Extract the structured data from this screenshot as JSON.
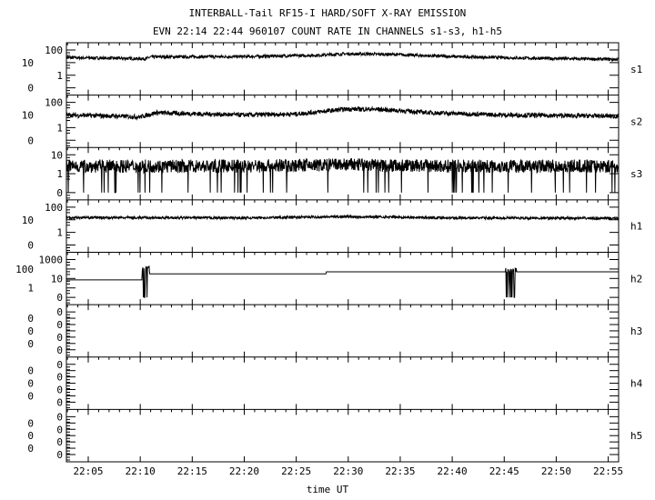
{
  "chart_data": {
    "type": "line",
    "title": "INTERBALL-Tail RF15-I HARD/SOFT X-RAY EMISSION",
    "subtitle": "EVN 22:14 22:44 960107  COUNT RATE IN CHANNELS s1-s3, h1-h5",
    "xlabel": "time UT",
    "xlim_minutes": [
      2.9,
      56.0
    ],
    "x_ticks": [
      {
        "label": "22:05",
        "min": 5
      },
      {
        "label": "22:10",
        "min": 10
      },
      {
        "label": "22:15",
        "min": 15
      },
      {
        "label": "22:20",
        "min": 20
      },
      {
        "label": "22:25",
        "min": 25
      },
      {
        "label": "22:30",
        "min": 30
      },
      {
        "label": "22:35",
        "min": 35
      },
      {
        "label": "22:40",
        "min": 40
      },
      {
        "label": "22:45",
        "min": 45
      },
      {
        "label": "22:50",
        "min": 50
      },
      {
        "label": "22:55",
        "min": 55
      }
    ],
    "yscale": "log",
    "panels": [
      {
        "name": "s1",
        "ylim": [
          0.1,
          100
        ],
        "yticks": [
          "100",
          "10",
          "1",
          "0"
        ],
        "points": [
          [
            2.9,
            25
          ],
          [
            8,
            22
          ],
          [
            10.5,
            20
          ],
          [
            11,
            28
          ],
          [
            20,
            30
          ],
          [
            27,
            38
          ],
          [
            30,
            50
          ],
          [
            34,
            45
          ],
          [
            40,
            30
          ],
          [
            48,
            22
          ],
          [
            56,
            18
          ]
        ],
        "noise": 0.12,
        "dropouts": 0
      },
      {
        "name": "s2",
        "ylim": [
          0.1,
          100
        ],
        "yticks": [
          "100",
          "10",
          "1",
          "0"
        ],
        "points": [
          [
            2.9,
            10
          ],
          [
            8,
            8
          ],
          [
            10,
            7
          ],
          [
            11.5,
            15
          ],
          [
            20,
            10
          ],
          [
            25,
            12
          ],
          [
            30,
            30
          ],
          [
            33,
            28
          ],
          [
            38,
            15
          ],
          [
            45,
            10
          ],
          [
            56,
            8
          ]
        ],
        "noise": 0.18,
        "dropouts": 0
      },
      {
        "name": "s3",
        "ylim": [
          0.1,
          10
        ],
        "yticks": [
          "10",
          "1",
          "0"
        ],
        "points": [
          [
            2.9,
            2.5
          ],
          [
            20,
            2.5
          ],
          [
            30,
            3
          ],
          [
            40,
            2.5
          ],
          [
            56,
            2.5
          ]
        ],
        "noise": 0.35,
        "dropouts": 0.03
      },
      {
        "name": "h1",
        "ylim": [
          0.1,
          100
        ],
        "yticks": [
          "100",
          "10",
          "1",
          "0"
        ],
        "points": [
          [
            2.9,
            15
          ],
          [
            20,
            14
          ],
          [
            30,
            18
          ],
          [
            40,
            14
          ],
          [
            56,
            13
          ]
        ],
        "noise": 0.1,
        "dropouts": 0
      },
      {
        "name": "h2",
        "ylim": [
          0.1,
          1000
        ],
        "yticks": [
          "1000",
          "100",
          "10",
          "1",
          "0"
        ],
        "step": true,
        "levels": [
          [
            2.9,
            7
          ],
          [
            10.4,
            30
          ],
          [
            27.9,
            50
          ],
          [
            56,
            50
          ]
        ],
        "bursts": [
          [
            10.2,
            10.9,
            200
          ],
          [
            45.1,
            46.2,
            150
          ]
        ]
      },
      {
        "name": "h3",
        "ylim": [
          0,
          1
        ],
        "yticks": [
          "0",
          "0",
          "0",
          "0",
          "0",
          "0",
          "0"
        ]
      },
      {
        "name": "h4",
        "ylim": [
          0,
          1
        ],
        "yticks": [
          "0",
          "0",
          "0",
          "0",
          "0",
          "0",
          "0"
        ]
      },
      {
        "name": "h5",
        "ylim": [
          0,
          1
        ],
        "yticks": [
          "0",
          "0",
          "0",
          "0",
          "0",
          "0",
          "0"
        ]
      }
    ],
    "grid": false
  }
}
